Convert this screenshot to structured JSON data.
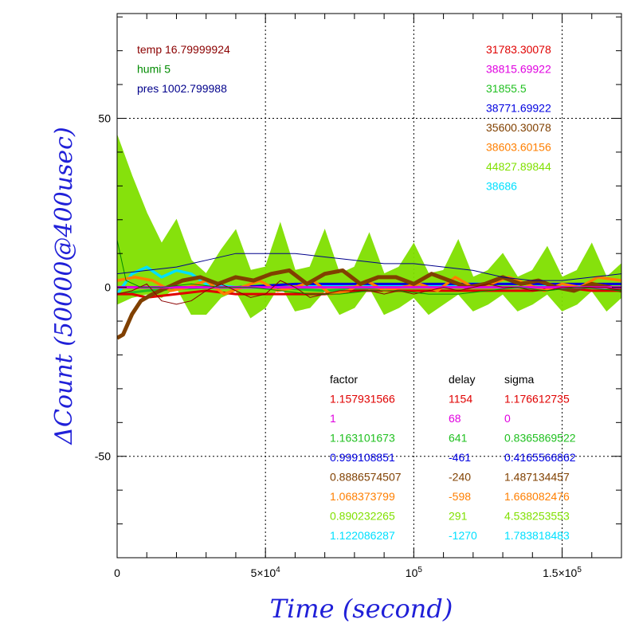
{
  "chart_data": {
    "type": "line",
    "xlabel": "Time (second)",
    "ylabel": "ΔCount (50000@400usec)",
    "xlim": [
      0,
      170000
    ],
    "ylim": [
      -80,
      81
    ],
    "xticks": [
      {
        "value": 0,
        "label": "0",
        "base": "0",
        "sup": ""
      },
      {
        "value": 50000,
        "label": "5×10^4",
        "base": "5×10",
        "sup": "4"
      },
      {
        "value": 100000,
        "label": "10^5",
        "base": "10",
        "sup": "5"
      },
      {
        "value": 150000,
        "label": "1.5×10^5",
        "base": "1.5×10",
        "sup": "5"
      }
    ],
    "yticks": [
      {
        "value": 50,
        "label": "50"
      },
      {
        "value": 0,
        "label": "0"
      },
      {
        "value": -50,
        "label": "-50"
      }
    ],
    "grid": true,
    "env_legend": [
      {
        "text": "temp 16.79999924",
        "color": "#8b0000"
      },
      {
        "text": "humi 5",
        "color": "#008b00"
      },
      {
        "text": "pres 1002.799988",
        "color": "#00008b"
      }
    ],
    "env_lines": [
      {
        "name": "temp",
        "color": "#8b0000",
        "points": [
          [
            0,
            -2
          ],
          [
            5000,
            -1
          ],
          [
            10000,
            1
          ],
          [
            15000,
            -4
          ],
          [
            20000,
            -5
          ],
          [
            25000,
            -4
          ],
          [
            30000,
            -1
          ],
          [
            35000,
            1
          ],
          [
            40000,
            -1
          ],
          [
            45000,
            -3
          ],
          [
            50000,
            -2
          ],
          [
            55000,
            2
          ],
          [
            60000,
            0
          ],
          [
            65000,
            -3
          ],
          [
            70000,
            -2
          ],
          [
            75000,
            -1
          ],
          [
            80000,
            -1
          ],
          [
            85000,
            -1
          ],
          [
            90000,
            -2
          ],
          [
            95000,
            -1
          ],
          [
            100000,
            -2
          ],
          [
            105000,
            -1
          ],
          [
            110000,
            0
          ],
          [
            115000,
            -1
          ],
          [
            120000,
            0
          ],
          [
            125000,
            1
          ],
          [
            130000,
            0
          ],
          [
            135000,
            0
          ],
          [
            140000,
            -1
          ],
          [
            145000,
            -1
          ],
          [
            150000,
            0
          ],
          [
            155000,
            0
          ],
          [
            160000,
            0
          ],
          [
            165000,
            0
          ],
          [
            170000,
            -1
          ]
        ]
      },
      {
        "name": "humi",
        "color": "#008b00",
        "points": [
          [
            0,
            14
          ],
          [
            3000,
            2
          ],
          [
            8000,
            0
          ],
          [
            15000,
            0
          ],
          [
            25000,
            1
          ],
          [
            35000,
            0
          ],
          [
            45000,
            0
          ],
          [
            55000,
            -1
          ],
          [
            65000,
            -2
          ],
          [
            75000,
            -2
          ],
          [
            85000,
            -1
          ],
          [
            95000,
            -1
          ],
          [
            105000,
            -2
          ],
          [
            115000,
            -2
          ],
          [
            125000,
            -1
          ],
          [
            135000,
            0
          ],
          [
            145000,
            -1
          ],
          [
            155000,
            0
          ],
          [
            170000,
            -1
          ]
        ]
      },
      {
        "name": "pres",
        "color": "#00008b",
        "points": [
          [
            0,
            4
          ],
          [
            10000,
            5
          ],
          [
            20000,
            6
          ],
          [
            30000,
            8
          ],
          [
            40000,
            10
          ],
          [
            50000,
            10
          ],
          [
            60000,
            10
          ],
          [
            70000,
            9
          ],
          [
            80000,
            8
          ],
          [
            90000,
            7
          ],
          [
            100000,
            7
          ],
          [
            110000,
            6
          ],
          [
            120000,
            5
          ],
          [
            130000,
            3
          ],
          [
            140000,
            2
          ],
          [
            150000,
            2
          ],
          [
            160000,
            3
          ],
          [
            170000,
            4
          ]
        ]
      }
    ],
    "series": [
      {
        "color": "#e00000",
        "total": "31783.30078",
        "factor": "1.157931566",
        "delay": "1154",
        "sigma": "1.176612735",
        "points": [
          [
            0,
            -2
          ],
          [
            5000,
            -2
          ],
          [
            10000,
            -3
          ],
          [
            20000,
            -2
          ],
          [
            30000,
            -1
          ],
          [
            40000,
            -2
          ],
          [
            50000,
            -2
          ],
          [
            60000,
            -2
          ],
          [
            70000,
            -2
          ],
          [
            80000,
            -1
          ],
          [
            90000,
            -1
          ],
          [
            100000,
            -1
          ],
          [
            110000,
            -1
          ],
          [
            120000,
            -1
          ],
          [
            130000,
            -1
          ],
          [
            140000,
            -1
          ],
          [
            150000,
            0
          ],
          [
            160000,
            -1
          ],
          [
            170000,
            -1
          ]
        ]
      },
      {
        "color": "#e000e0",
        "total": "38815.69922",
        "factor": "1",
        "delay": "68",
        "sigma": "0",
        "points": [
          [
            0,
            0
          ],
          [
            170000,
            0
          ]
        ]
      },
      {
        "color": "#20c020",
        "total": "31855.5",
        "factor": "1.163101673",
        "delay": "641",
        "sigma": "0.8365869522",
        "points": [
          [
            0,
            -2
          ],
          [
            10000,
            -1
          ],
          [
            30000,
            0
          ],
          [
            50000,
            0
          ],
          [
            70000,
            -1
          ],
          [
            90000,
            0
          ],
          [
            110000,
            0
          ],
          [
            130000,
            0
          ],
          [
            150000,
            0
          ],
          [
            170000,
            0
          ]
        ]
      },
      {
        "color": "#0000e0",
        "total": "38771.69922",
        "factor": "0.999108851",
        "delay": "-461",
        "sigma": "0.4165566862",
        "points": [
          [
            0,
            0
          ],
          [
            20000,
            0
          ],
          [
            40000,
            0
          ],
          [
            60000,
            1
          ],
          [
            80000,
            1
          ],
          [
            100000,
            1
          ],
          [
            120000,
            1
          ],
          [
            140000,
            1
          ],
          [
            160000,
            1
          ],
          [
            170000,
            1
          ]
        ]
      },
      {
        "color": "#804000",
        "total": "35600.30078",
        "factor": "0.8886574507",
        "delay": "-240",
        "sigma": "1.487134457",
        "points": [
          [
            0,
            -15
          ],
          [
            2000,
            -14
          ],
          [
            5000,
            -8
          ],
          [
            8000,
            -4
          ],
          [
            12000,
            -2
          ],
          [
            17000,
            0
          ],
          [
            22000,
            2
          ],
          [
            28000,
            3
          ],
          [
            34000,
            1
          ],
          [
            40000,
            3
          ],
          [
            46000,
            2
          ],
          [
            52000,
            4
          ],
          [
            58000,
            5
          ],
          [
            64000,
            1
          ],
          [
            70000,
            4
          ],
          [
            76000,
            5
          ],
          [
            82000,
            1
          ],
          [
            88000,
            3
          ],
          [
            94000,
            3
          ],
          [
            100000,
            1
          ],
          [
            106000,
            4
          ],
          [
            112000,
            2
          ],
          [
            118000,
            0
          ],
          [
            124000,
            1
          ],
          [
            130000,
            3
          ],
          [
            136000,
            1
          ],
          [
            142000,
            2
          ],
          [
            148000,
            0
          ],
          [
            154000,
            -1
          ],
          [
            160000,
            1
          ],
          [
            166000,
            0
          ],
          [
            170000,
            -1
          ]
        ]
      },
      {
        "color": "#ff7f00",
        "total": "38603.60156",
        "factor": "1.068373799",
        "delay": "-598",
        "sigma": "1.668082476",
        "points": [
          [
            0,
            2
          ],
          [
            6000,
            3
          ],
          [
            12000,
            2
          ],
          [
            18000,
            -1
          ],
          [
            24000,
            0
          ],
          [
            30000,
            2
          ],
          [
            36000,
            -2
          ],
          [
            42000,
            0
          ],
          [
            48000,
            2
          ],
          [
            54000,
            -1
          ],
          [
            60000,
            0
          ],
          [
            66000,
            2
          ],
          [
            72000,
            -2
          ],
          [
            78000,
            -1
          ],
          [
            84000,
            2
          ],
          [
            90000,
            -1
          ],
          [
            96000,
            0
          ],
          [
            102000,
            1
          ],
          [
            108000,
            -1
          ],
          [
            114000,
            3
          ],
          [
            120000,
            0
          ],
          [
            126000,
            1
          ],
          [
            132000,
            3
          ],
          [
            138000,
            1
          ],
          [
            144000,
            -1
          ],
          [
            150000,
            1
          ],
          [
            156000,
            0
          ],
          [
            162000,
            3
          ],
          [
            170000,
            2
          ]
        ]
      },
      {
        "color": "#80e000",
        "total": "44827.89844",
        "factor": "0.890232265",
        "delay": "291",
        "sigma": "4.538253553",
        "points": [
          [
            0,
            20
          ],
          [
            5000,
            15
          ],
          [
            10000,
            10
          ],
          [
            15000,
            5
          ],
          [
            20000,
            10
          ],
          [
            25000,
            0
          ],
          [
            30000,
            -2
          ],
          [
            35000,
            4
          ],
          [
            40000,
            8
          ],
          [
            45000,
            -2
          ],
          [
            50000,
            0
          ],
          [
            55000,
            10
          ],
          [
            60000,
            -1
          ],
          [
            65000,
            0
          ],
          [
            70000,
            8
          ],
          [
            75000,
            -2
          ],
          [
            80000,
            0
          ],
          [
            85000,
            8
          ],
          [
            90000,
            -2
          ],
          [
            95000,
            0
          ],
          [
            100000,
            5
          ],
          [
            105000,
            -2
          ],
          [
            110000,
            0
          ],
          [
            115000,
            6
          ],
          [
            120000,
            -2
          ],
          [
            125000,
            0
          ],
          [
            130000,
            4
          ],
          [
            135000,
            -2
          ],
          [
            140000,
            0
          ],
          [
            145000,
            5
          ],
          [
            150000,
            -2
          ],
          [
            155000,
            0
          ],
          [
            160000,
            6
          ],
          [
            165000,
            -2
          ],
          [
            170000,
            2
          ]
        ],
        "band": [
          [
            0,
            25
          ],
          [
            5000,
            18
          ],
          [
            10000,
            12
          ],
          [
            15000,
            8
          ],
          [
            20000,
            10
          ],
          [
            25000,
            8
          ],
          [
            30000,
            6
          ],
          [
            35000,
            7
          ],
          [
            40000,
            9
          ],
          [
            45000,
            7
          ],
          [
            50000,
            6
          ],
          [
            55000,
            9
          ],
          [
            60000,
            6
          ],
          [
            65000,
            6
          ],
          [
            70000,
            9
          ],
          [
            75000,
            6
          ],
          [
            80000,
            6
          ],
          [
            85000,
            8
          ],
          [
            90000,
            6
          ],
          [
            95000,
            6
          ],
          [
            100000,
            8
          ],
          [
            105000,
            6
          ],
          [
            110000,
            5
          ],
          [
            115000,
            8
          ],
          [
            120000,
            5
          ],
          [
            125000,
            5
          ],
          [
            130000,
            6
          ],
          [
            135000,
            5
          ],
          [
            140000,
            5
          ],
          [
            145000,
            7
          ],
          [
            150000,
            5
          ],
          [
            155000,
            5
          ],
          [
            160000,
            7
          ],
          [
            165000,
            5
          ],
          [
            170000,
            5
          ]
        ]
      },
      {
        "color": "#00e0ff",
        "total": "38686",
        "factor": "1.122086287",
        "delay": "-1270",
        "sigma": "1.783818483",
        "points": [
          [
            0,
            -2
          ],
          [
            5000,
            4
          ],
          [
            10000,
            6
          ],
          [
            15000,
            3
          ],
          [
            20000,
            5
          ],
          [
            25000,
            4
          ],
          [
            30000,
            1
          ],
          [
            40000,
            0
          ],
          [
            60000,
            0
          ],
          [
            80000,
            1
          ],
          [
            100000,
            0
          ],
          [
            120000,
            1
          ],
          [
            140000,
            1
          ],
          [
            160000,
            0
          ],
          [
            170000,
            0
          ]
        ]
      }
    ],
    "table_headers": {
      "factor": "factor",
      "delay": "delay",
      "sigma": "sigma"
    }
  }
}
